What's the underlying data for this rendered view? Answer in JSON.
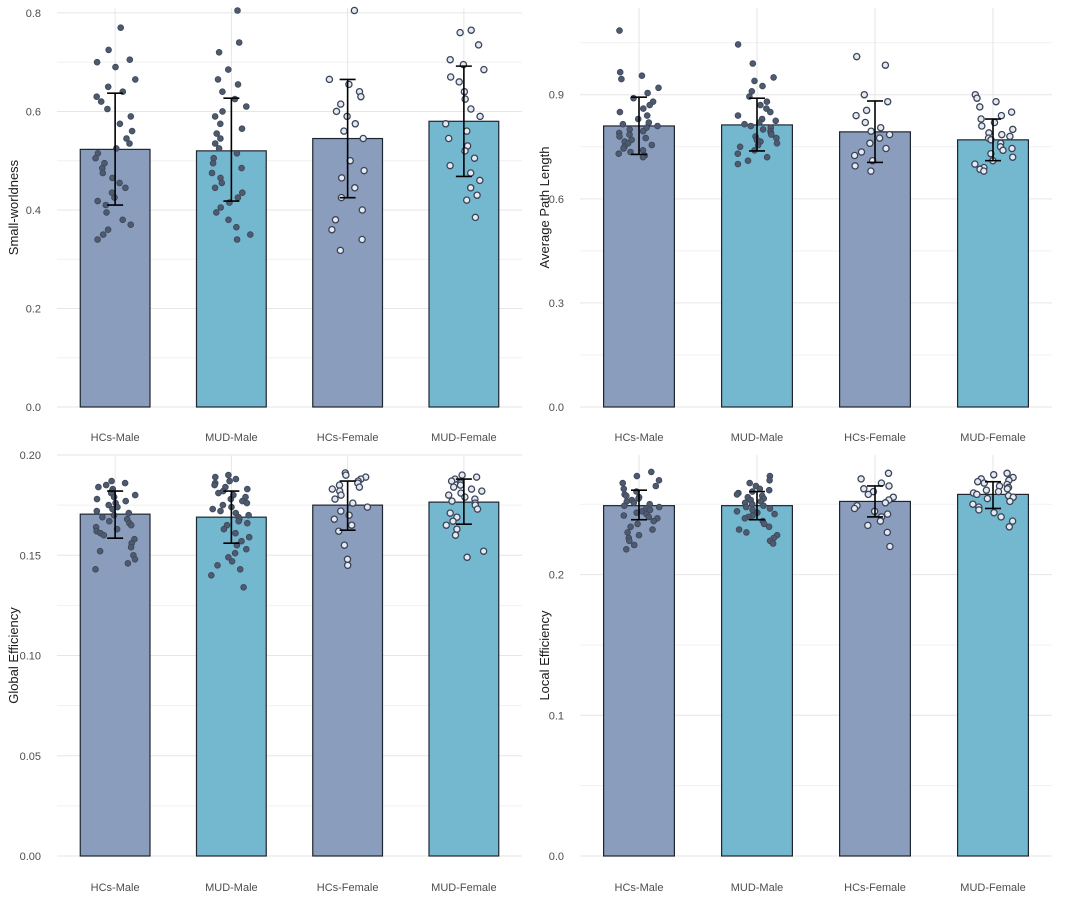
{
  "colors": {
    "hc_bar": "#8b9dbd",
    "mud_bar": "#74b8cf",
    "point_filled": "#4e5a6e",
    "point_open": "#e4e9f2"
  },
  "chart_data": [
    {
      "type": "bar",
      "title": "",
      "xlabel": "",
      "ylabel": "Small-worldness",
      "categories": [
        "HCs-Male",
        "MUD-Male",
        "HCs-Female",
        "MUD-Female"
      ],
      "values": [
        0.523,
        0.52,
        0.545,
        0.58
      ],
      "error": [
        [
          0.41,
          0.637
        ],
        [
          0.418,
          0.627
        ],
        [
          0.425,
          0.665
        ],
        [
          0.468,
          0.692
        ]
      ],
      "ylim": [
        0,
        0.81
      ],
      "yticks": [
        0.0,
        0.2,
        0.4,
        0.6,
        0.8
      ],
      "ytick_labels": [
        "0.0",
        "0.2",
        "0.4",
        "0.6",
        "0.8"
      ],
      "points": [
        [
          0.77,
          0.725,
          0.705,
          0.7,
          0.69,
          0.665,
          0.65,
          0.64,
          0.63,
          0.62,
          0.605,
          0.59,
          0.575,
          0.56,
          0.545,
          0.535,
          0.525,
          0.515,
          0.505,
          0.495,
          0.485,
          0.475,
          0.465,
          0.455,
          0.445,
          0.435,
          0.425,
          0.418,
          0.41,
          0.395,
          0.38,
          0.37,
          0.36,
          0.35,
          0.34
        ],
        [
          0.805,
          0.74,
          0.72,
          0.685,
          0.665,
          0.655,
          0.64,
          0.625,
          0.61,
          0.6,
          0.59,
          0.575,
          0.565,
          0.555,
          0.545,
          0.535,
          0.525,
          0.515,
          0.505,
          0.495,
          0.485,
          0.475,
          0.465,
          0.455,
          0.445,
          0.435,
          0.425,
          0.415,
          0.405,
          0.395,
          0.38,
          0.365,
          0.35,
          0.34
        ],
        [
          0.805,
          0.665,
          0.655,
          0.64,
          0.63,
          0.615,
          0.6,
          0.59,
          0.575,
          0.56,
          0.545,
          0.5,
          0.48,
          0.465,
          0.445,
          0.425,
          0.4,
          0.38,
          0.36,
          0.34,
          0.318
        ],
        [
          0.765,
          0.76,
          0.735,
          0.705,
          0.695,
          0.685,
          0.67,
          0.66,
          0.64,
          0.625,
          0.605,
          0.59,
          0.575,
          0.56,
          0.545,
          0.53,
          0.52,
          0.505,
          0.49,
          0.475,
          0.46,
          0.445,
          0.43,
          0.42,
          0.385
        ]
      ]
    },
    {
      "type": "bar",
      "title": "",
      "xlabel": "",
      "ylabel": "Average Path Length",
      "categories": [
        "HCs-Male",
        "MUD-Male",
        "HCs-Female",
        "MUD-Female"
      ],
      "values": [
        0.81,
        0.813,
        0.793,
        0.77
      ],
      "error": [
        [
          0.728,
          0.893
        ],
        [
          0.738,
          0.89
        ],
        [
          0.705,
          0.882
        ],
        [
          0.71,
          0.83
        ]
      ],
      "ylim": [
        0,
        1.15
      ],
      "yticks": [
        0.0,
        0.3,
        0.6,
        0.9
      ],
      "ytick_labels": [
        "0.0",
        "0.3",
        "0.6",
        "0.9"
      ],
      "points": [
        [
          1.085,
          0.965,
          0.955,
          0.945,
          0.92,
          0.905,
          0.89,
          0.88,
          0.87,
          0.86,
          0.85,
          0.84,
          0.83,
          0.82,
          0.815,
          0.81,
          0.805,
          0.8,
          0.795,
          0.79,
          0.785,
          0.78,
          0.775,
          0.77,
          0.765,
          0.76,
          0.755,
          0.75,
          0.745,
          0.74,
          0.735,
          0.73,
          0.725,
          0.72
        ],
        [
          1.045,
          0.99,
          0.95,
          0.94,
          0.925,
          0.91,
          0.895,
          0.88,
          0.87,
          0.86,
          0.85,
          0.84,
          0.83,
          0.825,
          0.82,
          0.815,
          0.81,
          0.805,
          0.8,
          0.795,
          0.79,
          0.785,
          0.78,
          0.775,
          0.77,
          0.765,
          0.76,
          0.755,
          0.75,
          0.74,
          0.73,
          0.72,
          0.71,
          0.7
        ],
        [
          1.01,
          0.985,
          0.9,
          0.88,
          0.855,
          0.84,
          0.82,
          0.805,
          0.795,
          0.785,
          0.775,
          0.76,
          0.745,
          0.735,
          0.725,
          0.71,
          0.695,
          0.68
        ],
        [
          0.9,
          0.89,
          0.88,
          0.865,
          0.85,
          0.84,
          0.83,
          0.82,
          0.81,
          0.8,
          0.79,
          0.785,
          0.78,
          0.775,
          0.77,
          0.76,
          0.75,
          0.745,
          0.74,
          0.73,
          0.72,
          0.71,
          0.7,
          0.69,
          0.685,
          0.68
        ]
      ]
    },
    {
      "type": "bar",
      "title": "",
      "xlabel": "",
      "ylabel": "Global Efficiency",
      "categories": [
        "HCs-Male",
        "MUD-Male",
        "HCs-Female",
        "MUD-Female"
      ],
      "values": [
        0.1705,
        0.169,
        0.175,
        0.1765
      ],
      "error": [
        [
          0.1585,
          0.182
        ],
        [
          0.156,
          0.182
        ],
        [
          0.1625,
          0.187
        ],
        [
          0.1655,
          0.188
        ]
      ],
      "ylim": [
        0,
        0.2
      ],
      "yticks": [
        0.0,
        0.05,
        0.1,
        0.15,
        0.2
      ],
      "ytick_labels": [
        "0.00",
        "0.05",
        "0.10",
        "0.15",
        "0.20"
      ],
      "points": [
        [
          0.187,
          0.186,
          0.185,
          0.184,
          0.183,
          0.182,
          0.181,
          0.18,
          0.179,
          0.178,
          0.177,
          0.176,
          0.175,
          0.174,
          0.173,
          0.172,
          0.171,
          0.17,
          0.169,
          0.168,
          0.167,
          0.166,
          0.165,
          0.164,
          0.163,
          0.162,
          0.161,
          0.16,
          0.158,
          0.156,
          0.154,
          0.152,
          0.15,
          0.148,
          0.146,
          0.143
        ],
        [
          0.19,
          0.189,
          0.188,
          0.187,
          0.186,
          0.185,
          0.184,
          0.183,
          0.182,
          0.181,
          0.18,
          0.179,
          0.178,
          0.177,
          0.176,
          0.175,
          0.174,
          0.173,
          0.172,
          0.171,
          0.17,
          0.169,
          0.168,
          0.167,
          0.166,
          0.165,
          0.163,
          0.161,
          0.159,
          0.157,
          0.155,
          0.153,
          0.151,
          0.149,
          0.147,
          0.145,
          0.143,
          0.14,
          0.134
        ],
        [
          0.191,
          0.19,
          0.189,
          0.188,
          0.187,
          0.186,
          0.185,
          0.184,
          0.183,
          0.182,
          0.18,
          0.178,
          0.176,
          0.174,
          0.172,
          0.17,
          0.168,
          0.165,
          0.162,
          0.155,
          0.148,
          0.145
        ],
        [
          0.19,
          0.189,
          0.188,
          0.187,
          0.186,
          0.185,
          0.184,
          0.183,
          0.182,
          0.181,
          0.18,
          0.179,
          0.178,
          0.177,
          0.176,
          0.175,
          0.173,
          0.171,
          0.169,
          0.167,
          0.165,
          0.163,
          0.16,
          0.152,
          0.149
        ]
      ]
    },
    {
      "type": "bar",
      "title": "",
      "xlabel": "",
      "ylabel": "Local Efficiency",
      "categories": [
        "HCs-Male",
        "MUD-Male",
        "HCs-Female",
        "MUD-Female"
      ],
      "values": [
        0.249,
        0.249,
        0.252,
        0.257
      ],
      "error": [
        [
          0.239,
          0.26
        ],
        [
          0.239,
          0.259
        ],
        [
          0.241,
          0.263
        ],
        [
          0.247,
          0.266
        ]
      ],
      "ylim": [
        0,
        0.285
      ],
      "yticks": [
        0.0,
        0.1,
        0.2
      ],
      "ytick_labels": [
        "0.0",
        "0.1",
        "0.2"
      ],
      "points": [
        [
          0.273,
          0.27,
          0.267,
          0.265,
          0.263,
          0.261,
          0.259,
          0.257,
          0.256,
          0.255,
          0.254,
          0.253,
          0.252,
          0.251,
          0.25,
          0.249,
          0.248,
          0.247,
          0.246,
          0.245,
          0.244,
          0.243,
          0.242,
          0.241,
          0.24,
          0.238,
          0.236,
          0.234,
          0.232,
          0.23,
          0.228,
          0.226,
          0.224,
          0.221,
          0.218
        ],
        [
          0.27,
          0.267,
          0.265,
          0.263,
          0.261,
          0.26,
          0.259,
          0.258,
          0.257,
          0.256,
          0.255,
          0.254,
          0.253,
          0.252,
          0.251,
          0.25,
          0.249,
          0.248,
          0.247,
          0.246,
          0.245,
          0.244,
          0.243,
          0.242,
          0.241,
          0.24,
          0.238,
          0.236,
          0.234,
          0.232,
          0.23,
          0.228,
          0.226,
          0.224,
          0.222
        ],
        [
          0.272,
          0.268,
          0.265,
          0.263,
          0.261,
          0.259,
          0.257,
          0.255,
          0.253,
          0.251,
          0.249,
          0.247,
          0.245,
          0.243,
          0.241,
          0.238,
          0.235,
          0.23,
          0.22
        ],
        [
          0.272,
          0.271,
          0.269,
          0.268,
          0.267,
          0.266,
          0.265,
          0.264,
          0.263,
          0.262,
          0.261,
          0.26,
          0.259,
          0.258,
          0.257,
          0.256,
          0.255,
          0.254,
          0.252,
          0.25,
          0.248,
          0.246,
          0.244,
          0.241,
          0.238,
          0.234
        ]
      ]
    }
  ]
}
